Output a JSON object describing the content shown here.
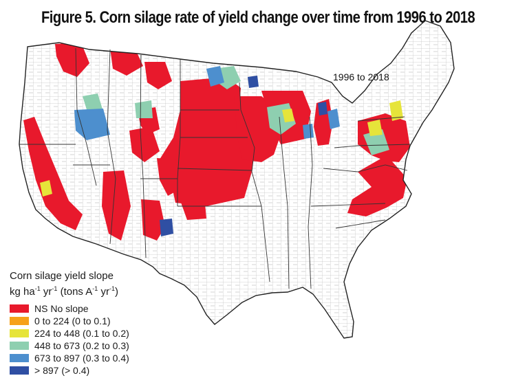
{
  "figure": {
    "title": "Figure 5. Corn silage rate of yield change over time from 1996 to 2018",
    "period_label": "1996 to 2018"
  },
  "legend": {
    "title": "Corn silage yield slope",
    "units_parts": [
      "kg ha",
      "-1",
      " yr",
      "-1",
      " (tons A",
      "-1",
      " yr",
      "-1",
      ")"
    ],
    "items": [
      {
        "label": "NS No slope",
        "color": "#e8192c"
      },
      {
        "label": "0 to 224 (0 to 0.1)",
        "color": "#f6a11a"
      },
      {
        "label": "224 to 448 (0.1 to 0.2)",
        "color": "#e6e43a"
      },
      {
        "label": "448 to 673 (0.2 to 0.3)",
        "color": "#8ecfb0"
      },
      {
        "label": "673 to 897 (0.3 to 0.4)",
        "color": "#4d8fce"
      },
      {
        "label": "> 897 (> 0.4)",
        "color": "#2f4fa3"
      }
    ]
  },
  "map_colors": {
    "background": "#ffffff",
    "county_lines": "#9a9a9a",
    "state_lines": "#222222"
  }
}
